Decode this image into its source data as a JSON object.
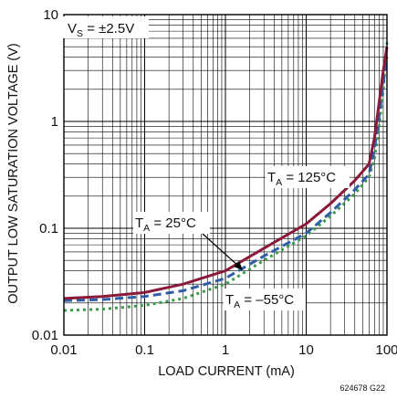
{
  "chart_data": {
    "type": "line",
    "xlabel": "LOAD CURRENT (mA)",
    "ylabel": "OUTPUT LOW SATURATION VOLTAGE (V)",
    "x_scale": "log",
    "y_scale": "log",
    "xlim": [
      0.01,
      100
    ],
    "ylim": [
      0.01,
      10
    ],
    "x_ticks": [
      "0.01",
      "0.1",
      "1",
      "10",
      "100"
    ],
    "y_ticks": [
      "10",
      "1",
      "0.1",
      "0.01"
    ],
    "grid": true,
    "legend_box": {
      "main": "V",
      "sub": "S",
      "rest": " = ±2.5V"
    },
    "figure_id": "624678 G22",
    "series": [
      {
        "name": "T_A = 125°C",
        "label": {
          "main": "T",
          "sub": "A",
          "rest": " = 125°C"
        },
        "color": "#8b1a3a",
        "dash": "solid",
        "x": [
          0.01,
          0.03,
          0.1,
          0.3,
          1,
          3,
          10,
          20,
          40,
          60,
          70,
          80,
          90,
          100
        ],
        "y": [
          0.022,
          0.023,
          0.025,
          0.03,
          0.04,
          0.065,
          0.11,
          0.17,
          0.28,
          0.4,
          0.7,
          1.5,
          3.0,
          5.0
        ]
      },
      {
        "name": "T_A = 25°C",
        "label": {
          "main": "T",
          "sub": "A",
          "rest": " = 25°C"
        },
        "color": "#2f5ea8",
        "dash": "dashed",
        "x": [
          0.01,
          0.03,
          0.1,
          0.3,
          1,
          3,
          10,
          20,
          40,
          60,
          70,
          80,
          90,
          100
        ],
        "y": [
          0.021,
          0.0215,
          0.023,
          0.026,
          0.034,
          0.055,
          0.09,
          0.14,
          0.23,
          0.32,
          0.55,
          1.1,
          2.3,
          4.0
        ]
      },
      {
        "name": "T_A = −55°C",
        "label": {
          "main": "T",
          "sub": "A",
          "rest": " = –55°C"
        },
        "color": "#3c9a4a",
        "dash": "dotted",
        "x": [
          0.01,
          0.03,
          0.1,
          0.3,
          1,
          3,
          10,
          20,
          40,
          60,
          70,
          80,
          90,
          100
        ],
        "y": [
          0.017,
          0.0175,
          0.019,
          0.022,
          0.03,
          0.05,
          0.085,
          0.13,
          0.21,
          0.3,
          0.45,
          0.9,
          2.0,
          5.5
        ]
      }
    ]
  }
}
